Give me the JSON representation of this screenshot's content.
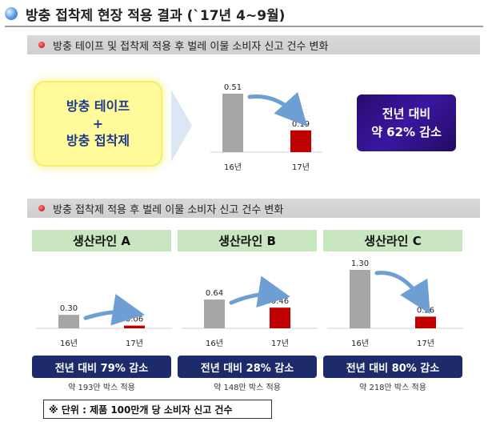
{
  "title": "방충 접착제 현장 적용 결과 (`17년 4~9월)",
  "section1": {
    "label": "방충 테이프 및 접착제 적용 후 벌레 이물 소비자 신고 건수 변화"
  },
  "section2": {
    "label": "방충 접착제 적용 후 벌레 이물 소비자 신고 건수 변화"
  },
  "applied_box": {
    "line1": "방충 테이프",
    "line2": "+",
    "line3": "방충 접착제"
  },
  "result_box": {
    "line1": "전년 대비",
    "line2": "약 62% 감소"
  },
  "lines": [
    {
      "name": "생산라인 A",
      "result": "전년 대비 79% 감소",
      "note": "약 193만 박스 적용"
    },
    {
      "name": "생산라인 B",
      "result": "전년 대비 28% 감소",
      "note": "약 148만 박스 적용"
    },
    {
      "name": "생산라인 C",
      "result": "전년 대비 80% 감소",
      "note": "약 218만 박스 적용"
    }
  ],
  "unit_note": "※ 단위 : 제품 100만개 당 소비자 신고 건수",
  "colors": {
    "prev_year_bar": "#a6a6a6",
    "this_year_bar": "#c00000",
    "arrow": "#6e9fd4"
  },
  "chart_data": [
    {
      "type": "bar",
      "categories": [
        "16년",
        "17년"
      ],
      "values": [
        0.51,
        0.19
      ],
      "ylim": [
        0,
        0.51
      ]
    },
    {
      "type": "bar",
      "title": "생산라인 A",
      "categories": [
        "16년",
        "17년"
      ],
      "values": [
        0.3,
        0.06
      ],
      "ylim": [
        0,
        1.3
      ]
    },
    {
      "type": "bar",
      "title": "생산라인 B",
      "categories": [
        "16년",
        "17년"
      ],
      "values": [
        0.64,
        0.46
      ],
      "ylim": [
        0,
        1.3
      ]
    },
    {
      "type": "bar",
      "title": "생산라인 C",
      "categories": [
        "16년",
        "17년"
      ],
      "values": [
        1.3,
        0.26
      ],
      "ylim": [
        0,
        1.3
      ]
    }
  ]
}
